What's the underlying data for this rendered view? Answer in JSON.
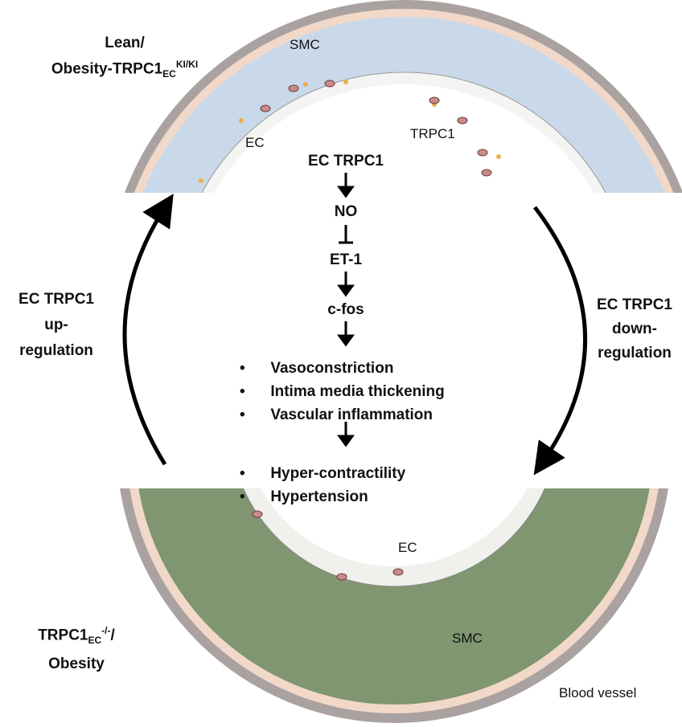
{
  "top_state": {
    "line1": "Lean/",
    "line2": "Obesity-TRPC1",
    "sub": "EC",
    "sup": "KI/KI"
  },
  "bottom_state": {
    "line1": "TRPC1",
    "sub": "EC",
    "sup": "-/-",
    "suffix": "/",
    "line2": "Obesity"
  },
  "left_arrow": {
    "line1": "EC TRPC1",
    "line2": "up-",
    "line3": "regulation"
  },
  "right_arrow": {
    "line1": "EC TRPC1",
    "line2": "down-",
    "line3": "regulation"
  },
  "top_vessel": {
    "smc": "SMC",
    "ec": "EC",
    "trpc1": "TRPC1"
  },
  "bottom_vessel": {
    "ec": "EC",
    "smc": "SMC"
  },
  "pathway": {
    "steps": [
      "EC TRPC1",
      "NO",
      "ET-1",
      "c-fos"
    ],
    "effects": [
      "Vasoconstriction",
      "Intima media thickening",
      "Vascular inflammation"
    ],
    "outcomes": [
      "Hyper-contractility",
      "Hypertension"
    ]
  },
  "caption": "Blood vessel",
  "colors": {
    "top_smc": "#c9d9ea",
    "bottom_smc": "#7f9670",
    "wall": "#a9a2a0",
    "interstitial": "#f2d8c8"
  }
}
